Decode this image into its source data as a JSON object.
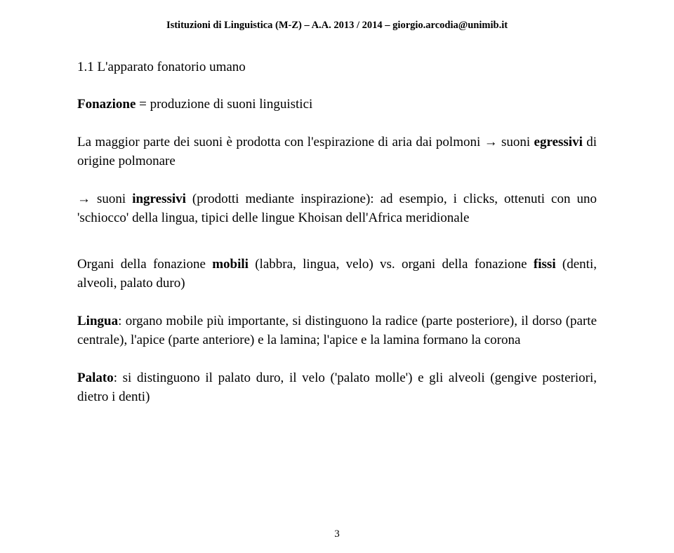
{
  "header": "Istituzioni di Linguistica (M-Z) – A.A. 2013 / 2014 – giorgio.arcodia@unimib.it",
  "sectionTitle": "1.1 L'apparato fonatorio umano",
  "para1_bold": "Fonazione",
  "para1_rest": " = produzione di suoni linguistici",
  "para2_a": "La maggior parte dei suoni è prodotta con l'espirazione di aria dai polmoni → suoni ",
  "para2_b_bold": "egressivi",
  "para2_c": " di origine polmonare",
  "para3_a": "→ suoni ",
  "para3_b_bold": "ingressivi",
  "para3_c": " (prodotti mediante inspirazione): ad esempio, i clicks, ottenuti con uno 'schiocco' della lingua, tipici delle lingue Khoisan dell'Africa meridionale",
  "para4_a": "Organi della fonazione ",
  "para4_b_bold": "mobili",
  "para4_c": " (labbra, lingua, velo) vs. organi della fonazione ",
  "para4_d_bold": "fissi",
  "para4_e": " (denti, alveoli, palato duro)",
  "para5_a_bold": "Lingua",
  "para5_b": ": organo mobile più importante, si distinguono la radice (parte posteriore), il dorso (parte centrale), l'apice (parte anteriore) e la lamina; l'apice e la lamina formano la corona",
  "para6_a_bold": "Palato",
  "para6_b": ": si distinguono il palato duro, il velo ('palato molle') e gli alveoli (gengive posteriori, dietro i denti)",
  "pageNumber": "3"
}
